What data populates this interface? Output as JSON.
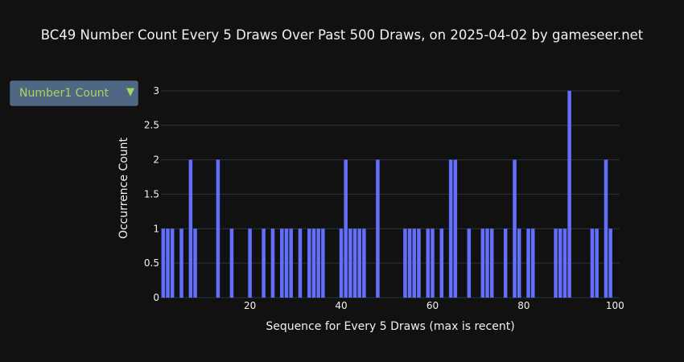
{
  "title": "BC49 Number Count Every 5 Draws Over Past 500 Draws, on 2025-04-02 by gameseer.net",
  "dropdown": {
    "selected": "Number1 Count",
    "arrow": "▼"
  },
  "colors": {
    "bar": "#636efa",
    "grid": "#283442",
    "background": "#111111"
  },
  "chart_data": {
    "type": "bar",
    "title": "BC49 Number Count Every 5 Draws Over Past 500 Draws, on 2025-04-02 by gameseer.net",
    "xlabel": "Sequence for Every 5 Draws (max is recent)",
    "ylabel": "Occurrence Count",
    "xlim": [
      0.5,
      101
    ],
    "ylim": [
      0,
      3.15
    ],
    "x_ticks": [
      20,
      40,
      60,
      80,
      100
    ],
    "y_ticks": [
      0,
      0.5,
      1,
      1.5,
      2,
      2.5,
      3
    ],
    "grid": true,
    "x": [
      1,
      2,
      3,
      5,
      7,
      8,
      13,
      16,
      20,
      23,
      25,
      27,
      28,
      29,
      31,
      33,
      34,
      35,
      36,
      40,
      41,
      42,
      43,
      44,
      45,
      48,
      54,
      55,
      56,
      57,
      59,
      60,
      62,
      64,
      65,
      68,
      71,
      72,
      73,
      76,
      78,
      79,
      81,
      82,
      87,
      88,
      89,
      90,
      95,
      96,
      98,
      99
    ],
    "values": [
      1,
      1,
      1,
      1,
      2,
      1,
      2,
      1,
      1,
      1,
      1,
      1,
      1,
      1,
      1,
      1,
      1,
      1,
      1,
      1,
      2,
      1,
      1,
      1,
      1,
      2,
      1,
      1,
      1,
      1,
      1,
      1,
      1,
      2,
      2,
      1,
      1,
      1,
      1,
      1,
      2,
      1,
      1,
      1,
      1,
      1,
      1,
      3,
      1,
      1,
      2,
      1
    ]
  }
}
